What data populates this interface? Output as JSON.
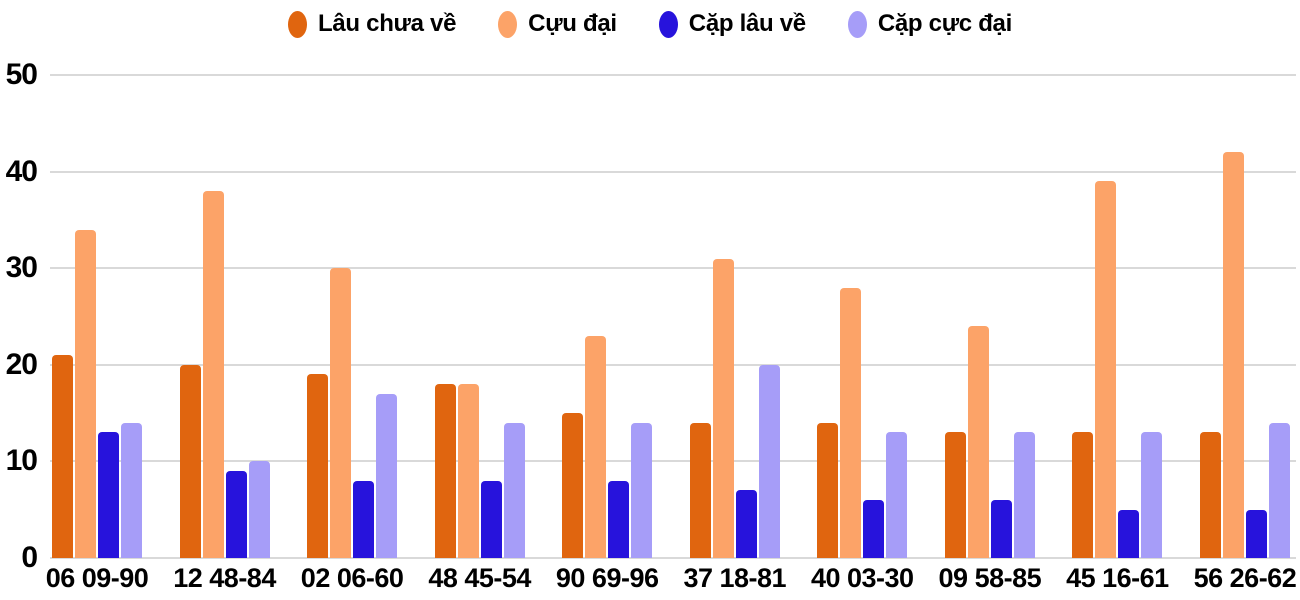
{
  "chart_data": {
    "type": "bar",
    "title": "",
    "categories": [
      "06 09-90",
      "12 48-84",
      "02 06-60",
      "48 45-54",
      "90 69-96",
      "37 18-81",
      "40 03-30",
      "09 58-85",
      "45 16-61",
      "56 26-62"
    ],
    "series": [
      {
        "name": "Lâu chưa về",
        "color": "#e0650f",
        "values": [
          21,
          20,
          19,
          18,
          15,
          14,
          14,
          13,
          13,
          13
        ]
      },
      {
        "name": "Cựu đại",
        "color": "#fca368",
        "values": [
          34,
          38,
          30,
          18,
          23,
          31,
          28,
          24,
          39,
          42
        ]
      },
      {
        "name": "Cặp lâu về",
        "color": "#2713dc",
        "values": [
          13,
          9,
          8,
          8,
          8,
          7,
          6,
          6,
          5,
          5
        ]
      },
      {
        "name": "Cặp cực đại",
        "color": "#a69df8",
        "values": [
          14,
          10,
          17,
          14,
          14,
          20,
          13,
          13,
          13,
          14
        ]
      }
    ],
    "xlabel": "",
    "ylabel": "",
    "ylim": [
      0,
      50
    ],
    "yticks": [
      0,
      10,
      20,
      30,
      40,
      50
    ],
    "grid": true,
    "gridline_color": "#d9d9d9",
    "label_color": "#000000",
    "background": "#ffffff",
    "legend_position": "top"
  }
}
